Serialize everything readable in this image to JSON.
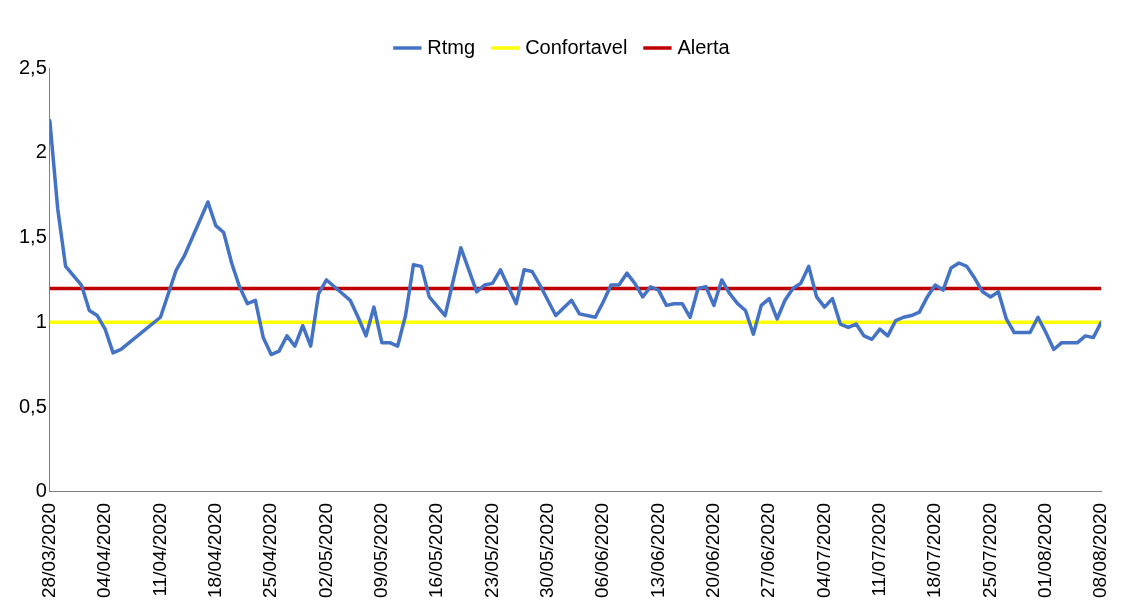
{
  "chart_data": {
    "type": "line",
    "legend": "top",
    "grid": false,
    "marker": "none",
    "line_style": "solid",
    "xlim": [
      "2020-03-28",
      "2020-08-08"
    ],
    "xticks": [
      {
        "value": "2020-03-28",
        "label": "28/03/2020"
      },
      {
        "value": "2020-04-04",
        "label": "04/04/2020"
      },
      {
        "value": "2020-04-11",
        "label": "11/04/2020"
      },
      {
        "value": "2020-04-18",
        "label": "18/04/2020"
      },
      {
        "value": "2020-04-25",
        "label": "25/04/2020"
      },
      {
        "value": "2020-05-02",
        "label": "02/05/2020"
      },
      {
        "value": "2020-05-09",
        "label": "09/05/2020"
      },
      {
        "value": "2020-05-16",
        "label": "16/05/2020"
      },
      {
        "value": "2020-05-23",
        "label": "23/05/2020"
      },
      {
        "value": "2020-05-30",
        "label": "30/05/2020"
      },
      {
        "value": "2020-06-06",
        "label": "06/06/2020"
      },
      {
        "value": "2020-06-13",
        "label": "13/06/2020"
      },
      {
        "value": "2020-06-20",
        "label": "20/06/2020"
      },
      {
        "value": "2020-06-27",
        "label": "27/06/2020"
      },
      {
        "value": "2020-07-04",
        "label": "04/07/2020"
      },
      {
        "value": "2020-07-11",
        "label": "11/07/2020"
      },
      {
        "value": "2020-07-18",
        "label": "18/07/2020"
      },
      {
        "value": "2020-07-25",
        "label": "25/07/2020"
      },
      {
        "value": "2020-08-01",
        "label": "01/08/2020"
      },
      {
        "value": "2020-08-08",
        "label": "08/08/2020"
      }
    ],
    "ylim": [
      0,
      2.5
    ],
    "yticks": [
      0,
      {
        "value": 0.5,
        "label": "0,5"
      },
      1,
      {
        "value": 1.5,
        "label": "1,5"
      },
      2,
      {
        "value": 2.5,
        "label": "2,5"
      }
    ],
    "series": [
      {
        "name": "Rtmg",
        "color": "#4472c4",
        "x": [
          "2020-03-28",
          "2020-03-29",
          "2020-03-30",
          "2020-04-01",
          "2020-04-02",
          "2020-04-03",
          "2020-04-04",
          "2020-04-05",
          "2020-04-06",
          "2020-04-11",
          "2020-04-13",
          "2020-04-14",
          "2020-04-17",
          "2020-04-18",
          "2020-04-19",
          "2020-04-20",
          "2020-04-21",
          "2020-04-22",
          "2020-04-23",
          "2020-04-24",
          "2020-04-25",
          "2020-04-26",
          "2020-04-27",
          "2020-04-28",
          "2020-04-29",
          "2020-04-30",
          "2020-05-01",
          "2020-05-02",
          "2020-05-04",
          "2020-05-05",
          "2020-05-06",
          "2020-05-07",
          "2020-05-08",
          "2020-05-09",
          "2020-05-10",
          "2020-05-11",
          "2020-05-12",
          "2020-05-13",
          "2020-05-14",
          "2020-05-15",
          "2020-05-17",
          "2020-05-19",
          "2020-05-21",
          "2020-05-22",
          "2020-05-23",
          "2020-05-24",
          "2020-05-26",
          "2020-05-27",
          "2020-05-28",
          "2020-05-29",
          "2020-05-31",
          "2020-06-02",
          "2020-06-03",
          "2020-06-05",
          "2020-06-06",
          "2020-06-07",
          "2020-06-08",
          "2020-06-09",
          "2020-06-10",
          "2020-06-11",
          "2020-06-12",
          "2020-06-13",
          "2020-06-14",
          "2020-06-15",
          "2020-06-16",
          "2020-06-17",
          "2020-06-18",
          "2020-06-19",
          "2020-06-20",
          "2020-06-21",
          "2020-06-22",
          "2020-06-23",
          "2020-06-24",
          "2020-06-25",
          "2020-06-26",
          "2020-06-27",
          "2020-06-28",
          "2020-06-29",
          "2020-06-30",
          "2020-07-01",
          "2020-07-02",
          "2020-07-03",
          "2020-07-04",
          "2020-07-05",
          "2020-07-06",
          "2020-07-07",
          "2020-07-08",
          "2020-07-09",
          "2020-07-10",
          "2020-07-11",
          "2020-07-12",
          "2020-07-13",
          "2020-07-14",
          "2020-07-15",
          "2020-07-16",
          "2020-07-17",
          "2020-07-18",
          "2020-07-19",
          "2020-07-20",
          "2020-07-21",
          "2020-07-22",
          "2020-07-23",
          "2020-07-24",
          "2020-07-25",
          "2020-07-26",
          "2020-07-27",
          "2020-07-28",
          "2020-07-30",
          "2020-07-31",
          "2020-08-01",
          "2020-08-02",
          "2020-08-03",
          "2020-08-05",
          "2020-08-06",
          "2020-08-07",
          "2020-08-08"
        ],
        "values": [
          2.19,
          1.67,
          1.33,
          1.22,
          1.07,
          1.04,
          0.96,
          0.82,
          0.84,
          1.03,
          1.31,
          1.39,
          1.71,
          1.57,
          1.53,
          1.35,
          1.21,
          1.11,
          1.13,
          0.91,
          0.81,
          0.83,
          0.92,
          0.86,
          0.98,
          0.86,
          1.17,
          1.25,
          1.17,
          1.13,
          1.03,
          0.92,
          1.09,
          0.88,
          0.88,
          0.86,
          1.04,
          1.34,
          1.33,
          1.15,
          1.04,
          1.44,
          1.18,
          1.22,
          1.23,
          1.31,
          1.11,
          1.31,
          1.3,
          1.22,
          1.04,
          1.13,
          1.05,
          1.03,
          1.12,
          1.22,
          1.22,
          1.29,
          1.23,
          1.15,
          1.21,
          1.19,
          1.1,
          1.11,
          1.11,
          1.03,
          1.2,
          1.21,
          1.1,
          1.25,
          1.17,
          1.11,
          1.07,
          0.93,
          1.1,
          1.14,
          1.02,
          1.13,
          1.2,
          1.23,
          1.33,
          1.15,
          1.09,
          1.14,
          0.99,
          0.97,
          0.99,
          0.92,
          0.9,
          0.96,
          0.92,
          1.01,
          1.03,
          1.04,
          1.06,
          1.15,
          1.22,
          1.19,
          1.32,
          1.35,
          1.33,
          1.26,
          1.18,
          1.15,
          1.18,
          1.02,
          0.94,
          0.94,
          1.03,
          0.94,
          0.84,
          0.88,
          0.88,
          0.92,
          0.91,
          1.0
        ]
      },
      {
        "name": "Confortavel",
        "color": "#ffff00",
        "x": [
          "2020-03-28",
          "2020-08-08"
        ],
        "values": [
          1,
          1
        ]
      },
      {
        "name": "Alerta",
        "color": "#c00000",
        "x": [
          "2020-03-28",
          "2020-08-08"
        ],
        "values": [
          1.2,
          1.2
        ]
      }
    ]
  }
}
